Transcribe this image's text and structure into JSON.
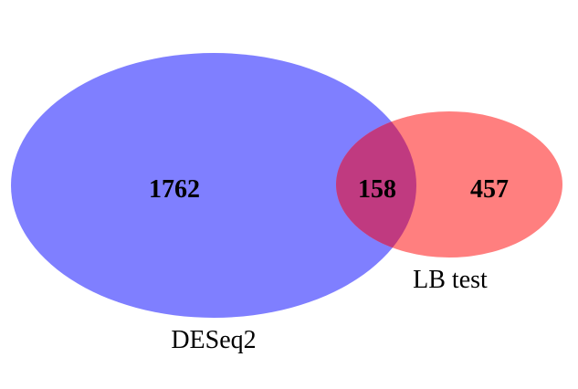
{
  "venn": {
    "sets": [
      {
        "name": "DESeq2",
        "color": "#7f7fff",
        "only_count": "1762"
      },
      {
        "name": "LB test",
        "color": "#ff7f7f",
        "only_count": "457"
      }
    ],
    "intersection": {
      "count": "158",
      "color": "#c03a80"
    }
  }
}
